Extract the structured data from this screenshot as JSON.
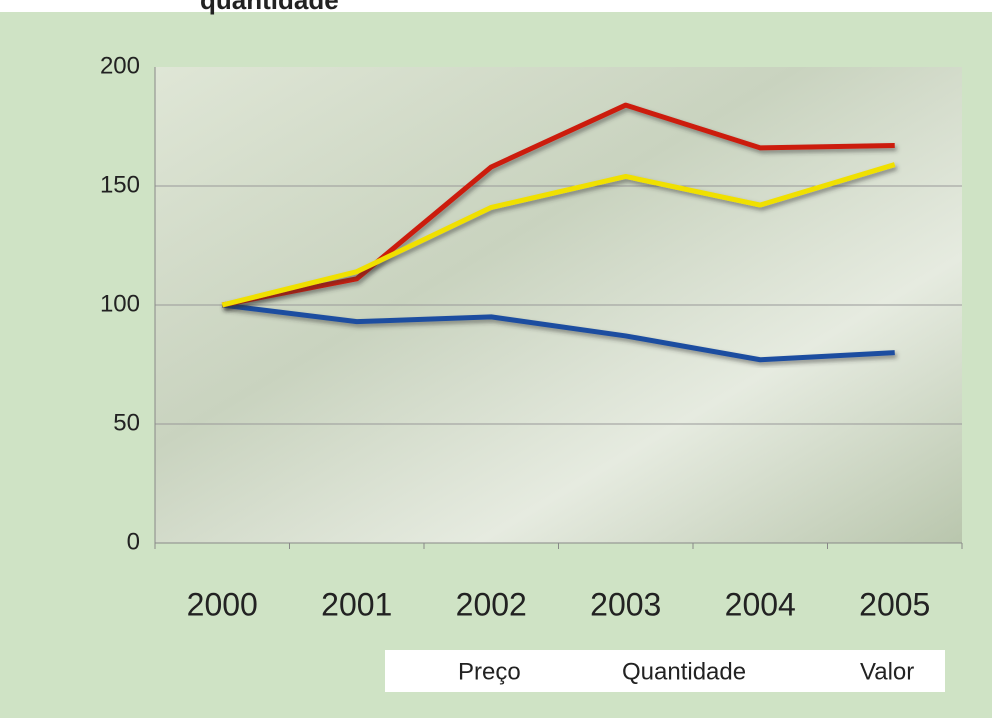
{
  "chart_data": {
    "type": "line",
    "title": "quantidade",
    "categories": [
      "2000",
      "2001",
      "2002",
      "2003",
      "2004",
      "2005"
    ],
    "series": [
      {
        "name": "Preço",
        "color": "#1f4ea0",
        "values": [
          100,
          93,
          95,
          87,
          77,
          80
        ]
      },
      {
        "name": "Quantidade",
        "color": "#cc1a10",
        "values": [
          100,
          111,
          158,
          184,
          166,
          167
        ]
      },
      {
        "name": "Valor",
        "color": "#f0e000",
        "values": [
          100,
          114,
          141,
          154,
          142,
          159
        ]
      }
    ],
    "ylim": [
      0,
      200
    ],
    "yticks": [
      0,
      50,
      100,
      150,
      200
    ],
    "grid": true,
    "legend": "bottom-right"
  }
}
